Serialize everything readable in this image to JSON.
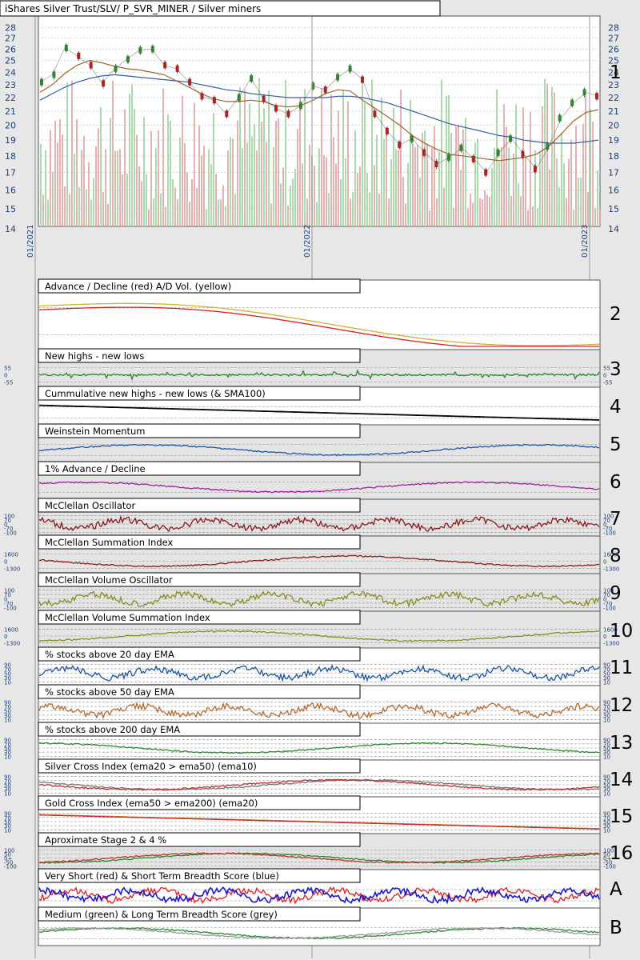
{
  "title": "iShares Silver Trust/SLV/ P_SVR_MINER / Silver miners",
  "chart_data": {
    "type": "line",
    "x_ticks": [
      "01/2021",
      "01/2022",
      "01/2023"
    ],
    "price": {
      "y_ticks": [
        28,
        27,
        26,
        25,
        24,
        23,
        22,
        21,
        20,
        19,
        18,
        17,
        16,
        15,
        14
      ],
      "ylim": [
        14,
        28.5
      ],
      "scale": "log",
      "close": [
        23.2,
        23.8,
        26.1,
        25.4,
        24.6,
        23.1,
        24.3,
        25.1,
        25.9,
        26.0,
        24.6,
        24.3,
        23.2,
        22.1,
        21.8,
        20.8,
        22.0,
        23.5,
        21.9,
        21.2,
        20.8,
        21.4,
        22.9,
        22.6,
        23.6,
        24.3,
        23.4,
        20.8,
        19.6,
        18.7,
        19.1,
        18.2,
        17.5,
        17.9,
        18.5,
        17.8,
        17.0,
        18.2,
        19.1,
        18.1,
        17.2,
        18.6,
        20.5,
        21.6,
        22.4,
        22.1
      ],
      "ma_brown": [
        22.4,
        23.0,
        23.9,
        24.6,
        25.0,
        24.8,
        24.5,
        24.3,
        24.2,
        24.0,
        23.8,
        23.3,
        22.8,
        22.3,
        21.9,
        21.7,
        21.7,
        21.8,
        21.7,
        21.4,
        21.3,
        21.4,
        21.8,
        22.3,
        22.6,
        22.5,
        21.8,
        21.2,
        20.6,
        20.0,
        19.3,
        18.8,
        18.4,
        18.1,
        18.0,
        17.9,
        17.8,
        17.7,
        17.8,
        17.9,
        18.1,
        18.6,
        19.4,
        20.3,
        20.9,
        21.1
      ],
      "ma_blue": [
        21.8,
        22.3,
        22.8,
        23.2,
        23.5,
        23.7,
        23.8,
        23.7,
        23.6,
        23.5,
        23.4,
        23.3,
        23.2,
        23.0,
        22.8,
        22.6,
        22.5,
        22.3,
        22.2,
        22.1,
        22.0,
        22.0,
        22.0,
        22.0,
        22.1,
        22.1,
        22.0,
        21.8,
        21.6,
        21.3,
        21.0,
        20.7,
        20.4,
        20.1,
        19.9,
        19.7,
        19.5,
        19.3,
        19.2,
        19.0,
        18.9,
        18.8,
        18.8,
        18.8,
        18.9,
        19.0
      ]
    },
    "panels": [
      {
        "num": "2",
        "title": "Advance / Decline (red) A/D Vol. (yellow)",
        "y_ticks": []
      },
      {
        "num": "3",
        "title": "New highs - new lows",
        "y_ticks": [
          "55",
          "0",
          "-55"
        ]
      },
      {
        "num": "4",
        "title": "Cummulative new highs - new lows (& SMA100)",
        "y_ticks": []
      },
      {
        "num": "5",
        "title": "Weinstein Momentum",
        "y_ticks": []
      },
      {
        "num": "6",
        "title": "1% Advance / Decline",
        "y_ticks": []
      },
      {
        "num": "7",
        "title": "McClellan Oscillator",
        "y_ticks": [
          "100",
          "70",
          "0",
          "-70",
          "-100"
        ]
      },
      {
        "num": "8",
        "title": "McClellan Summation Index",
        "y_ticks": [
          "1600",
          "0",
          "-1300"
        ]
      },
      {
        "num": "9",
        "title": "McClellan Volume Oscillator",
        "y_ticks": [
          "100",
          "70",
          "0",
          "-70",
          "-100"
        ]
      },
      {
        "num": "10",
        "title": "McClellan Volume Summation Index",
        "y_ticks": [
          "1600",
          "0",
          "-1300"
        ]
      },
      {
        "num": "11",
        "title": "% stocks above 20 day EMA",
        "y_ticks": [
          "90",
          "70",
          "50",
          "30",
          "10"
        ]
      },
      {
        "num": "12",
        "title": "% stocks above 50 day EMA",
        "y_ticks": [
          "90",
          "70",
          "50",
          "30",
          "10"
        ]
      },
      {
        "num": "13",
        "title": "% stocks above 200 day EMA",
        "y_ticks": [
          "90",
          "70",
          "50",
          "30",
          "10"
        ]
      },
      {
        "num": "14",
        "title": "Silver Cross Index (ema20 > ema50) (ema10)",
        "y_ticks": [
          "90",
          "70",
          "50",
          "30",
          "10"
        ]
      },
      {
        "num": "15",
        "title": "Gold Cross Index (ema50 > ema200) (ema20)",
        "y_ticks": [
          "90",
          "70",
          "50",
          "30",
          "10"
        ]
      },
      {
        "num": "16",
        "title": "Aproximate Stage 2 & 4 %",
        "y_ticks": [
          "100",
          "50",
          "0+",
          "-50",
          "-100"
        ]
      },
      {
        "num": "A",
        "title": "Very Short (red) & Short Term Breadth Score (blue)",
        "y_ticks": []
      },
      {
        "num": "B",
        "title": "Medium (green) & Long Term Breadth Score (grey)",
        "y_ticks": []
      }
    ]
  }
}
